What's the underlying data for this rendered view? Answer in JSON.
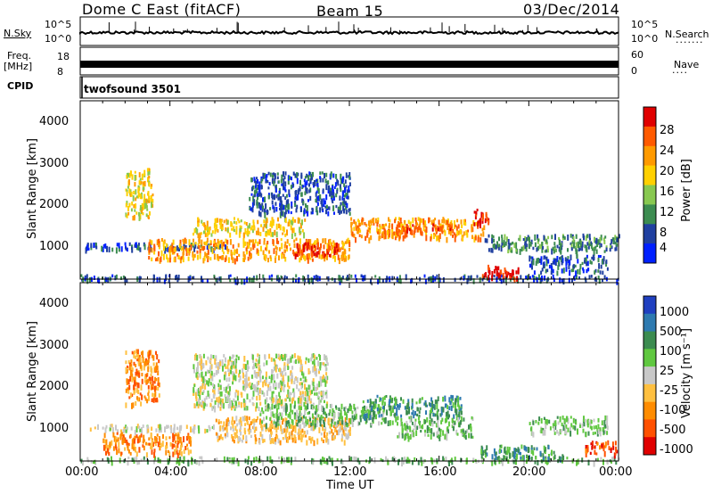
{
  "header": {
    "station": "Dome C East (fitACF)",
    "beam": "Beam 15",
    "date": "03/Dec/2014"
  },
  "top_panels": {
    "nsky_label": "N.Sky",
    "nsky_ticks": [
      "10^5",
      "10^0"
    ],
    "nsearch_label": "N.Search",
    "nsearch_ticks": [
      "10^5",
      "10^0"
    ],
    "freq_label": "Freq.",
    "freq_unit": "[MHz]",
    "freq_ticks": [
      "18",
      "8"
    ],
    "nave_label": "Nave",
    "nave_ticks": [
      "60",
      "0"
    ],
    "cpid_label": "CPID",
    "cpid_value": "twofsound 3501"
  },
  "chart_data": [
    {
      "type": "heatmap",
      "name": "power",
      "ylabel": "Slant Range [km]",
      "yticks": [
        "4000",
        "3000",
        "2000",
        "1000"
      ],
      "ylim": [
        200,
        4500
      ],
      "xlim": [
        0,
        24
      ],
      "colorbar_label": "Power [dB]",
      "colorbar_ticks": [
        "28",
        "24",
        "20",
        "16",
        "12",
        "8",
        "4"
      ],
      "colorbar_colors": [
        "#e00000",
        "#ff5a00",
        "#ff9a00",
        "#ffd000",
        "#88c850",
        "#3c8c50",
        "#2040a0",
        "#0020ff"
      ],
      "regions": [
        {
          "t0": 0.0,
          "t1": 24.0,
          "r0": 200,
          "r1": 320,
          "level": 6
        },
        {
          "t0": 0.2,
          "t1": 6.5,
          "r0": 950,
          "r1": 1100,
          "level": 6
        },
        {
          "t0": 2.0,
          "t1": 3.2,
          "r0": 1700,
          "r1": 2900,
          "level": 3
        },
        {
          "t0": 3.0,
          "t1": 12.0,
          "r0": 700,
          "r1": 1200,
          "level": 2
        },
        {
          "t0": 5.0,
          "t1": 10.0,
          "r0": 1300,
          "r1": 1700,
          "level": 3
        },
        {
          "t0": 7.5,
          "t1": 12.0,
          "r0": 1800,
          "r1": 2800,
          "level": 6
        },
        {
          "t0": 9.5,
          "t1": 11.5,
          "r0": 800,
          "r1": 1100,
          "level": 0
        },
        {
          "t0": 12.0,
          "t1": 18.0,
          "r0": 1200,
          "r1": 1700,
          "level": 2
        },
        {
          "t0": 14.0,
          "t1": 16.5,
          "r0": 1350,
          "r1": 1550,
          "level": 1
        },
        {
          "t0": 17.5,
          "t1": 18.2,
          "r0": 1500,
          "r1": 1900,
          "level": 0
        },
        {
          "t0": 17.8,
          "t1": 19.6,
          "r0": 250,
          "r1": 550,
          "level": 0
        },
        {
          "t0": 18.0,
          "t1": 24.0,
          "r0": 900,
          "r1": 1300,
          "level": 5
        },
        {
          "t0": 20.0,
          "t1": 23.5,
          "r0": 400,
          "r1": 800,
          "level": 6
        }
      ]
    },
    {
      "type": "heatmap",
      "name": "velocity",
      "ylabel": "Slant Range [km]",
      "yticks": [
        "4000",
        "3000",
        "2000",
        "1000"
      ],
      "ylim": [
        200,
        4500
      ],
      "xlim": [
        0,
        24
      ],
      "xlabel": "Time UT",
      "xticks": [
        "00:00",
        "04:00",
        "08:00",
        "12:00",
        "16:00",
        "20:00",
        "00:00"
      ],
      "colorbar_label": "Velocity [m s^-1]",
      "colorbar_ticks": [
        "1000",
        "500",
        "100",
        "25",
        "-25",
        "-100",
        "-500",
        "-1000"
      ],
      "colorbar_colors": [
        "#2040c0",
        "#2e7ab0",
        "#3c8c50",
        "#60c840",
        "#c8c8c8",
        "#ffc040",
        "#ff8c00",
        "#ff5000",
        "#e00000"
      ],
      "regions": [
        {
          "t0": 0.0,
          "t1": 24.0,
          "r0": 200,
          "r1": 320,
          "level": 3
        },
        {
          "t0": 0.2,
          "t1": 6.0,
          "r0": 950,
          "r1": 1100,
          "level": 4
        },
        {
          "t0": 2.0,
          "t1": 3.5,
          "r0": 1600,
          "r1": 2900,
          "level": 6
        },
        {
          "t0": 1.0,
          "t1": 5.0,
          "r0": 400,
          "r1": 900,
          "level": 6
        },
        {
          "t0": 5.0,
          "t1": 11.0,
          "r0": 1500,
          "r1": 2800,
          "level": 4
        },
        {
          "t0": 6.0,
          "t1": 12.0,
          "r0": 700,
          "r1": 1300,
          "level": 5
        },
        {
          "t0": 8.0,
          "t1": 14.0,
          "r0": 1100,
          "r1": 1600,
          "level": 3
        },
        {
          "t0": 12.5,
          "t1": 17.0,
          "r0": 1300,
          "r1": 1800,
          "level": 2
        },
        {
          "t0": 14.0,
          "t1": 17.5,
          "r0": 800,
          "r1": 1300,
          "level": 3
        },
        {
          "t0": 17.8,
          "t1": 21.5,
          "r0": 300,
          "r1": 600,
          "level": 2
        },
        {
          "t0": 20.0,
          "t1": 23.5,
          "r0": 900,
          "r1": 1300,
          "level": 3
        },
        {
          "t0": 22.5,
          "t1": 24.0,
          "r0": 400,
          "r1": 700,
          "level": 7
        }
      ]
    }
  ]
}
